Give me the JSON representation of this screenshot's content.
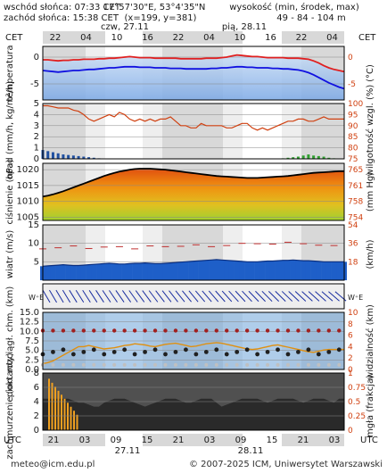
{
  "header": {
    "sunrise": "wschód słońca: 07:33 CET",
    "sunset": "zachód słońca: 15:38 CET",
    "coords": "17°57'30\"E, 53°4'35\"N",
    "grid": "(x=199, y=381)",
    "elevation_label": "wysokość (min, środek, max)",
    "elevation_values": "49 - 84 - 104 m",
    "tz_left": "CET",
    "tz_right": "CET",
    "day1": "czw, 27.11",
    "day2": "pią, 28.11",
    "top_hours": [
      "22",
      "04",
      "10",
      "16",
      "22",
      "04",
      "10",
      "16",
      "22",
      "04"
    ]
  },
  "footer": {
    "utc_left": "UTC",
    "utc_right": "UTC",
    "bottom_hours": [
      "21",
      "03",
      "09",
      "15",
      "21",
      "03",
      "09",
      "15",
      "21",
      "03"
    ],
    "bottom_day1": "27.11",
    "bottom_day2": "28.11",
    "email": "meteo@icm.edu.pl",
    "copyright": "© 2007-2025 ICM, Uniwersytet Warszawski"
  },
  "colors": {
    "temperature": "#e02020",
    "dewpoint": "#1010e0",
    "humidity": "#d04010",
    "wind": "#1e5fc8",
    "gust": "#c03030",
    "accent_right_axis": "#d04010"
  },
  "chart_data": [
    {
      "type": "line",
      "panel": "temperatura",
      "ylabel": "temperatura",
      "ylabel_right": "(°C)",
      "yticks": [
        0,
        -5
      ],
      "ylim": [
        -8,
        2
      ],
      "x_steps": 60,
      "series": [
        {
          "values": [
            -0.5,
            -0.5,
            -0.6,
            -0.7,
            -0.6,
            -0.6,
            -0.5,
            -0.5,
            -0.4,
            -0.4,
            -0.4,
            -0.3,
            -0.3,
            -0.2,
            -0.2,
            -0.1,
            0.0,
            0.1,
            0.0,
            -0.1,
            -0.1,
            -0.1,
            -0.2,
            -0.2,
            -0.2,
            -0.2,
            -0.2,
            -0.3,
            -0.3,
            -0.3,
            -0.3,
            -0.3,
            -0.2,
            -0.2,
            -0.2,
            -0.1,
            0.0,
            0.2,
            0.4,
            0.3,
            0.2,
            0.1,
            0.1,
            0.0,
            -0.1,
            -0.1,
            -0.1,
            -0.1,
            -0.2,
            -0.2,
            -0.2,
            -0.3,
            -0.4,
            -0.7,
            -1.1,
            -1.6,
            -2.0,
            -2.3,
            -2.5,
            -2.7
          ]
        },
        {
          "values": [
            -2.5,
            -2.6,
            -2.7,
            -2.8,
            -2.7,
            -2.6,
            -2.5,
            -2.5,
            -2.4,
            -2.3,
            -2.3,
            -2.2,
            -2.1,
            -2.0,
            -2.0,
            -1.9,
            -1.8,
            -1.8,
            -1.8,
            -1.9,
            -1.9,
            -1.9,
            -2.0,
            -2.0,
            -2.0,
            -2.1,
            -2.1,
            -2.1,
            -2.2,
            -2.2,
            -2.2,
            -2.2,
            -2.2,
            -2.1,
            -2.1,
            -2.0,
            -2.0,
            -1.9,
            -1.8,
            -1.8,
            -1.9,
            -1.9,
            -2.0,
            -2.0,
            -2.0,
            -2.1,
            -2.1,
            -2.2,
            -2.2,
            -2.3,
            -2.4,
            -2.6,
            -2.9,
            -3.3,
            -3.8,
            -4.3,
            -4.8,
            -5.2,
            -5.6,
            -5.9
          ]
        }
      ]
    },
    {
      "type": "bar",
      "panel": "opad",
      "ylabel": "opad (mm/h, kg/m²/h)",
      "ylabel_right": "wilgotność wzgl. (%)",
      "yticks_left": [
        5,
        4,
        3,
        2,
        1,
        0
      ],
      "yticks_right": [
        100,
        95,
        90,
        85,
        80,
        75
      ],
      "ylim": [
        0,
        5
      ],
      "ylim_right": [
        75,
        100
      ],
      "precip": [
        0.8,
        0.7,
        0.6,
        0.5,
        0.4,
        0.35,
        0.3,
        0.25,
        0.2,
        0.15,
        0.1,
        0.05,
        0,
        0,
        0,
        0,
        0,
        0,
        0,
        0,
        0,
        0,
        0,
        0,
        0,
        0,
        0,
        0,
        0,
        0,
        0,
        0,
        0,
        0,
        0,
        0,
        0,
        0,
        0,
        0,
        0,
        0,
        0,
        0,
        0,
        0,
        0,
        0.05,
        0.1,
        0.15,
        0.2,
        0.3,
        0.4,
        0.3,
        0.25,
        0.2,
        0.1,
        0.05,
        0,
        0
      ],
      "humidity": [
        99,
        99,
        98.5,
        98,
        98,
        98,
        97,
        96.5,
        95,
        93,
        92,
        93,
        94,
        95,
        94,
        96,
        95,
        93,
        92,
        93,
        92,
        93,
        92,
        93,
        93,
        94,
        92,
        90,
        90,
        89,
        89,
        91,
        90,
        90,
        90,
        90,
        89,
        89,
        90,
        91,
        91,
        89,
        88,
        89,
        88,
        89,
        90,
        91,
        92,
        92,
        93,
        93,
        92,
        92,
        93,
        94,
        93,
        93,
        93,
        93
      ]
    },
    {
      "type": "area",
      "panel": "ciśnienie",
      "ylabel": "ciśnienie (hPa)",
      "ylabel_right": "(mm Hg)",
      "yticks_left": [
        1020,
        1015,
        1010,
        1005
      ],
      "yticks_right": [
        765,
        761,
        758,
        754
      ],
      "ylim": [
        1004,
        1022
      ],
      "values": [
        1011.5,
        1011.8,
        1012.2,
        1012.7,
        1013.2,
        1013.8,
        1014.4,
        1015.0,
        1015.6,
        1016.2,
        1016.8,
        1017.4,
        1018.0,
        1018.5,
        1019.0,
        1019.4,
        1019.7,
        1020.0,
        1020.2,
        1020.3,
        1020.3,
        1020.3,
        1020.2,
        1020.1,
        1020.0,
        1019.8,
        1019.6,
        1019.4,
        1019.2,
        1019.0,
        1018.8,
        1018.6,
        1018.4,
        1018.2,
        1018.0,
        1017.9,
        1017.8,
        1017.7,
        1017.6,
        1017.5,
        1017.4,
        1017.4,
        1017.4,
        1017.5,
        1017.6,
        1017.7,
        1017.8,
        1017.9,
        1018.0,
        1018.2,
        1018.4,
        1018.6,
        1018.8,
        1019.0,
        1019.1,
        1019.2,
        1019.3,
        1019.4,
        1019.5,
        1019.5
      ]
    },
    {
      "type": "line",
      "panel": "wiatr",
      "ylabel": "wiatr (m/s)",
      "ylabel_right": "(km/h)",
      "yticks_left": [
        15,
        10,
        5
      ],
      "yticks_right": [
        54,
        36,
        18
      ],
      "ylim": [
        0,
        15
      ],
      "wind": [
        3.8,
        3.9,
        4.0,
        4.1,
        4.2,
        4.1,
        4.0,
        4.0,
        4.1,
        4.2,
        4.3,
        4.4,
        4.5,
        4.6,
        4.5,
        4.4,
        4.4,
        4.5,
        4.6,
        4.6,
        4.7,
        4.6,
        4.5,
        4.5,
        4.6,
        4.7,
        4.8,
        4.9,
        5.0,
        5.1,
        5.2,
        5.3,
        5.4,
        5.5,
        5.6,
        5.5,
        5.4,
        5.3,
        5.2,
        5.1,
        5.0,
        5.0,
        5.0,
        5.1,
        5.2,
        5.2,
        5.3,
        5.4,
        5.4,
        5.5,
        5.4,
        5.3,
        5.3,
        5.2,
        5.1,
        5.0,
        5.0,
        5.0,
        5.0,
        5.0
      ],
      "gust": [
        8.5,
        8.7,
        9.0,
        8.8,
        8.6,
        8.9,
        9.3,
        9.1,
        8.8,
        8.6,
        8.5,
        8.7,
        9.0,
        9.2,
        9.4,
        9.1,
        8.8,
        8.6,
        8.5,
        8.7,
        9.0,
        9.3,
        9.5,
        9.3,
        9.1,
        8.9,
        9.0,
        9.2,
        9.5,
        9.7,
        9.6,
        9.4,
        9.3,
        9.1,
        9.0,
        9.2,
        9.4,
        9.6,
        9.8,
        10.0,
        10.2,
        10.1,
        9.9,
        9.8,
        9.7,
        9.8,
        10.0,
        10.2,
        10.3,
        10.2,
        10.0,
        9.9,
        9.7,
        9.6,
        9.5,
        9.5,
        9.4,
        9.4,
        9.3,
        9.3
      ]
    },
    {
      "type": "scatter",
      "panel": "widzialność",
      "ylabel": "pion. rozciągł. chm. (km)",
      "ylabel_right": "widzialność (km)",
      "yticks_left": [
        15.0,
        12.5,
        10.0,
        7.5,
        5.0,
        2.5,
        0.0
      ],
      "yticks_right": [
        10,
        8,
        6,
        4,
        2,
        0
      ],
      "ylim": [
        0,
        15
      ],
      "visibility_km": [
        1.0,
        1.2,
        1.5,
        2.0,
        2.5,
        3.0,
        3.5,
        4.0,
        4.0,
        4.2,
        4.0,
        3.8,
        3.6,
        3.7,
        3.8,
        4.0,
        4.2,
        4.3,
        4.5,
        4.4,
        4.3,
        4.1,
        4.0,
        4.2,
        4.4,
        4.5,
        4.6,
        4.4,
        4.2,
        4.0,
        4.1,
        4.3,
        4.5,
        4.6,
        4.7,
        4.6,
        4.4,
        4.2,
        4.0,
        3.8,
        3.6,
        3.5,
        3.6,
        3.8,
        4.0,
        4.2,
        4.3,
        4.1,
        3.9,
        3.7,
        3.5,
        3.3,
        3.1,
        3.0,
        3.2,
        3.4,
        3.5,
        3.5,
        3.5,
        3.5
      ]
    },
    {
      "type": "area",
      "panel": "zachmurzenie",
      "ylabel": "zachmurzenie (oktanty)",
      "ylabel_right": "mgła (frakcja)",
      "yticks_left": [
        8,
        6,
        4,
        2,
        0
      ],
      "yticks_right": [
        1.0,
        0.75,
        0.5,
        0.25,
        0
      ],
      "ylim": [
        0,
        8
      ],
      "cloud_total": [
        8,
        8,
        8,
        8,
        8,
        8,
        7.5,
        7,
        7,
        6.5,
        6,
        6,
        7,
        7.5,
        8,
        8,
        8,
        7.5,
        7,
        6.5,
        6,
        6.5,
        7,
        7.5,
        8,
        8,
        8,
        7.5,
        7,
        7,
        7.5,
        8,
        8,
        8,
        7,
        6,
        6.5,
        7,
        7.5,
        8,
        8,
        8,
        8,
        7.5,
        7,
        7.5,
        8,
        8,
        8,
        8,
        7.5,
        7,
        7.5,
        8,
        8,
        8,
        7.5,
        7,
        8,
        8
      ]
    }
  ]
}
